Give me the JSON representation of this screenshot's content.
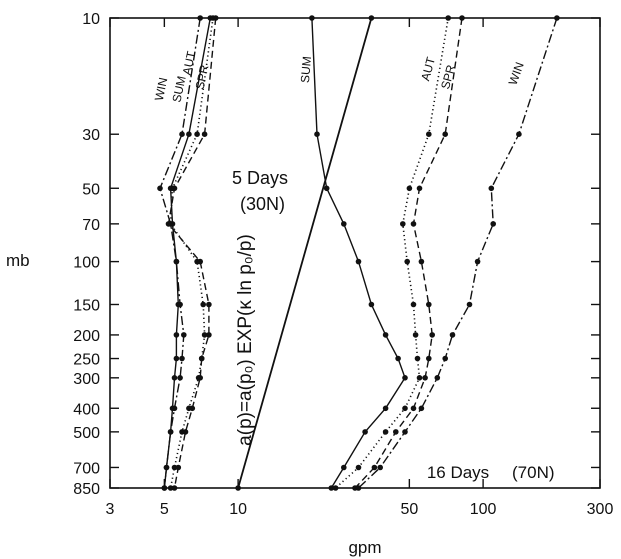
{
  "chart_data": {
    "type": "line",
    "xscale": "log",
    "yscale": "log",
    "xlim": [
      3,
      300
    ],
    "ylim": [
      850,
      10
    ],
    "xlabel": "gpm",
    "ylabel": "mb",
    "xticks": [
      3,
      5,
      10,
      50,
      100,
      300
    ],
    "xtick_labels": [
      "3",
      "5",
      "10",
      "50",
      "100",
      "300"
    ],
    "yticks": [
      10,
      30,
      50,
      70,
      100,
      150,
      200,
      250,
      300,
      400,
      500,
      700,
      850
    ],
    "ytick_labels": [
      "10",
      "30",
      "50",
      "70",
      "100",
      "150",
      "200",
      "250",
      "300",
      "400",
      "500",
      "700",
      "850"
    ],
    "grid": false,
    "pressure_levels": [
      10,
      30,
      50,
      70,
      100,
      150,
      200,
      250,
      300,
      400,
      500,
      700,
      850
    ],
    "groups": [
      {
        "label": "5 Days",
        "sublabel": "(30N)",
        "series": [
          {
            "name": "WIN",
            "style": "dashdot",
            "values": [
              7.0,
              5.9,
              4.8,
              5.3,
              5.6,
              5.8,
              6.0,
              5.9,
              5.8,
              5.5,
              5.3,
              5.1,
              5.0
            ]
          },
          {
            "name": "SUM",
            "style": "solid",
            "values": [
              7.7,
              6.3,
              5.3,
              5.4,
              5.6,
              5.7,
              5.6,
              5.6,
              5.5,
              5.4,
              5.3,
              5.1,
              5.0
            ]
          },
          {
            "name": "AUT",
            "style": "dotted",
            "values": [
              7.9,
              6.8,
              5.4,
              5.3,
              6.8,
              7.2,
              7.3,
              7.1,
              6.9,
              6.3,
              5.9,
              5.5,
              5.3
            ]
          },
          {
            "name": "SPR",
            "style": "dashed",
            "values": [
              8.1,
              7.3,
              5.5,
              5.2,
              7.0,
              7.6,
              7.6,
              7.1,
              7.0,
              6.5,
              6.1,
              5.7,
              5.5
            ]
          }
        ]
      },
      {
        "label": "16 Days",
        "sublabel": "(70N)",
        "series": [
          {
            "name": "SUM",
            "style": "solid",
            "values": [
              20,
              21,
              23,
              27,
              31,
              35,
              40,
              45,
              48,
              40,
              33,
              27,
              24
            ]
          },
          {
            "name": "AUT",
            "style": "dotted",
            "values": [
              72,
              60,
              50,
              47,
              49,
              52,
              53,
              54,
              55,
              48,
              40,
              31,
              25
            ]
          },
          {
            "name": "SPR",
            "style": "dashed",
            "values": [
              82,
              70,
              55,
              52,
              56,
              60,
              62,
              60,
              58,
              52,
              44,
              36,
              30
            ]
          },
          {
            "name": "WIN",
            "style": "dashdot",
            "values": [
              200,
              140,
              108,
              110,
              95,
              88,
              75,
              70,
              65,
              56,
              48,
              38,
              31
            ]
          }
        ]
      }
    ],
    "reference_line": {
      "label": "a(p)=a(p₀) EXP(κ ln p₀/p)",
      "x": [
        10,
        35
      ],
      "p": [
        850,
        10
      ]
    },
    "series_tags": [
      "WIN",
      "SUM",
      "AUT",
      "SPR",
      "SUM",
      "AUT",
      "SPR",
      "WIN"
    ]
  }
}
